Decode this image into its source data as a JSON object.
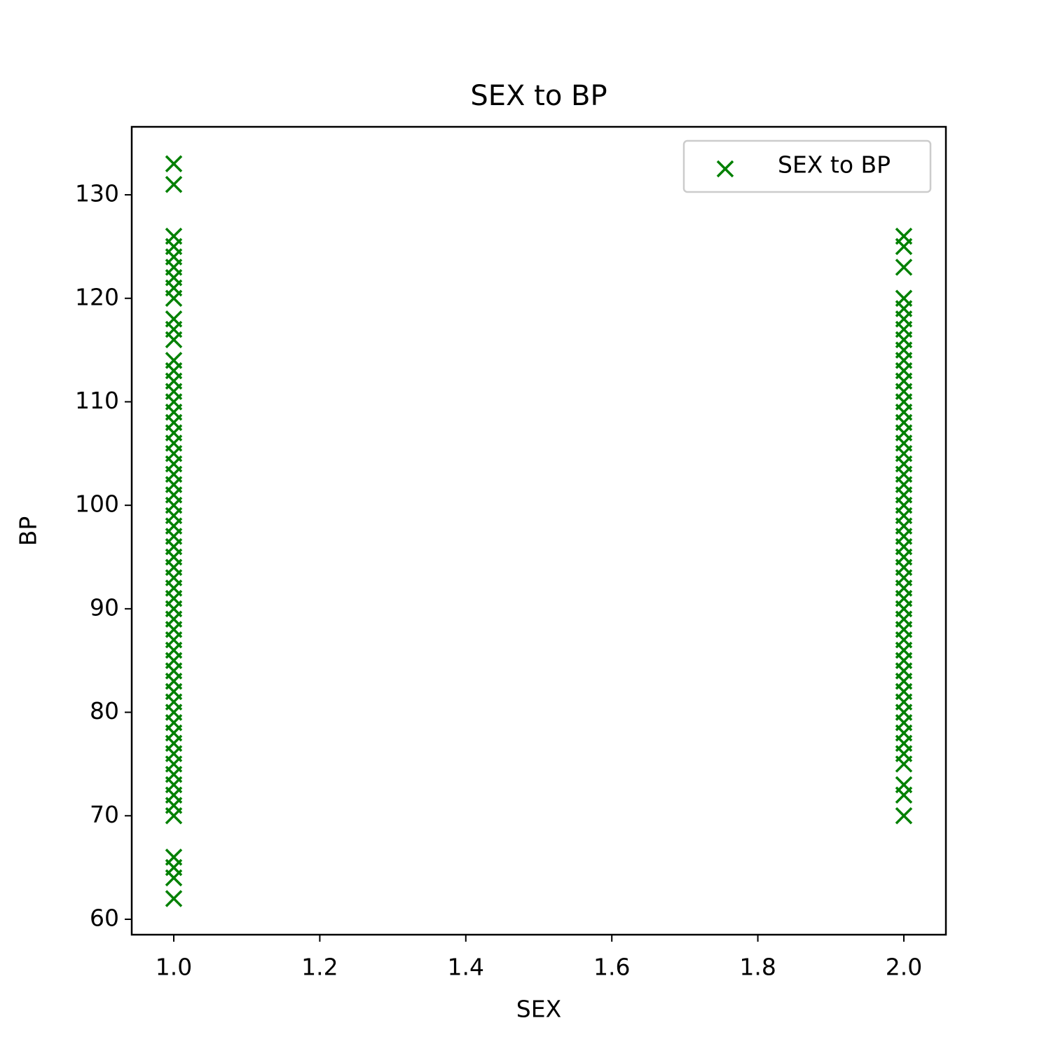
{
  "chart_data": {
    "type": "scatter",
    "title": "SEX to BP",
    "x_label": "SEX",
    "y_label": "BP",
    "xlim": [
      0.9424,
      2.0576
    ],
    "ylim": [
      58.51,
      136.57
    ],
    "xticks": [
      {
        "value": 1,
        "label": "1.0"
      },
      1.2,
      1.4,
      1.6,
      1.8,
      {
        "value": 2,
        "label": "2.0"
      }
    ],
    "yticks": [
      60,
      70,
      80,
      90,
      100,
      110,
      120,
      130
    ],
    "legend": "upper right",
    "marker": "x",
    "series": [
      {
        "name": "SEX to BP",
        "color": "#008000",
        "x": [
          1,
          1,
          1,
          1,
          1,
          1,
          1,
          1,
          1,
          1,
          1,
          1,
          1,
          1,
          1,
          1,
          1,
          1,
          1,
          1,
          1,
          1,
          1,
          1,
          1,
          1,
          1,
          1,
          1,
          1,
          1,
          1,
          1,
          1,
          1,
          1,
          1,
          1,
          1,
          1,
          1,
          1,
          1,
          1,
          1,
          1,
          1,
          1,
          1,
          1,
          1,
          1,
          1,
          1,
          1,
          1,
          1,
          1,
          1,
          1,
          1,
          2,
          2,
          2,
          2,
          2,
          2,
          2,
          2,
          2,
          2,
          2,
          2,
          2,
          2,
          2,
          2,
          2,
          2,
          2,
          2,
          2,
          2,
          2,
          2,
          2,
          2,
          2,
          2,
          2,
          2,
          2,
          2,
          2,
          2,
          2,
          2,
          2,
          2,
          2,
          2,
          2,
          2,
          2,
          2,
          2,
          2,
          2,
          2,
          2,
          2,
          2,
          2
        ],
        "values": [
          133,
          131,
          126,
          125,
          124,
          123,
          122,
          121,
          120,
          118,
          117,
          116,
          114,
          113,
          112,
          111,
          110,
          109,
          108,
          107,
          106,
          105,
          104,
          103,
          102,
          101,
          100,
          99,
          98,
          97,
          96,
          95,
          94,
          93,
          92,
          91,
          90,
          89,
          88,
          87,
          86,
          85,
          84,
          83,
          82,
          81,
          80,
          79,
          78,
          77,
          76,
          75,
          74,
          73,
          72,
          71,
          70,
          66,
          65,
          64,
          62,
          126,
          125,
          123,
          120,
          119,
          118,
          117,
          116,
          115,
          114,
          113,
          112,
          111,
          110,
          109,
          108,
          107,
          106,
          105,
          104,
          103,
          102,
          101,
          100,
          99,
          98,
          97,
          96,
          95,
          94,
          93,
          92,
          91,
          90,
          89,
          88,
          87,
          86,
          85,
          84,
          83,
          82,
          81,
          80,
          79,
          78,
          77,
          76,
          75,
          73,
          72,
          70
        ]
      }
    ]
  }
}
